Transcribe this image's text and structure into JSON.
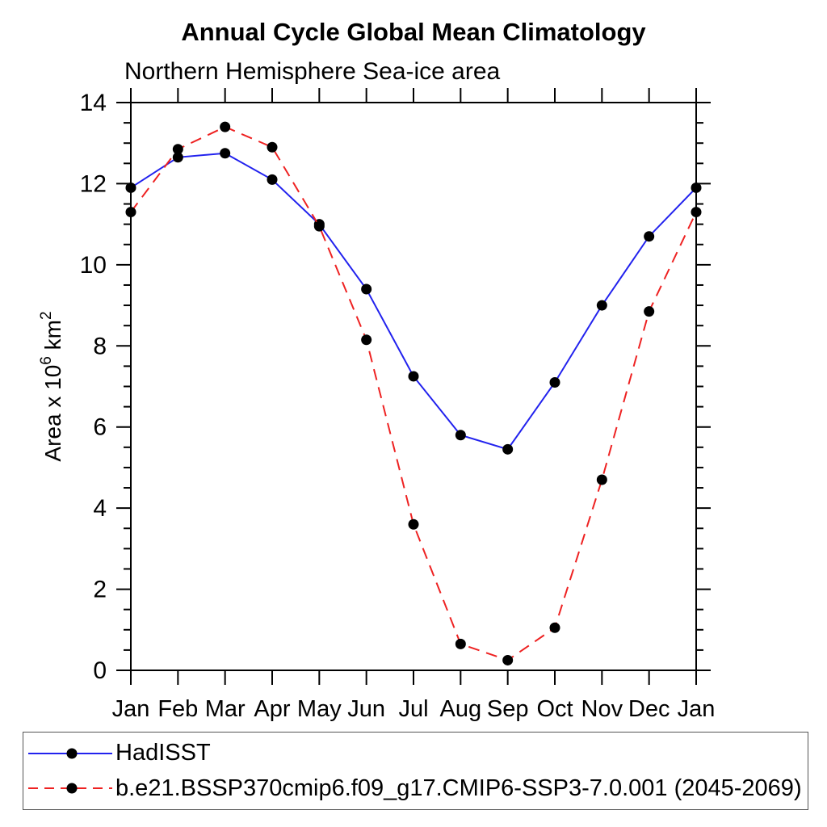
{
  "chart_data": {
    "type": "line",
    "title": "Annual Cycle Global Mean Climatology",
    "subtitle": "Northern Hemisphere Sea-ice area",
    "ylabel": "Area x 10^6 km^2",
    "xlabel": "",
    "x_categories": [
      "Jan",
      "Feb",
      "Mar",
      "Apr",
      "May",
      "Jun",
      "Jul",
      "Aug",
      "Sep",
      "Oct",
      "Nov",
      "Dec",
      "Jan"
    ],
    "ylim": [
      0,
      14
    ],
    "ytick_major_step": 2,
    "ytick_minor_step": 0.5,
    "grid": false,
    "legend_position": "bottom-left-box",
    "colors": {
      "axis": "#000000",
      "marker": "#000000",
      "background": "#ffffff",
      "legend_border": "#555555"
    },
    "series": [
      {
        "name": "HadISST",
        "color": "#2222ee",
        "line_style": "solid",
        "marker": "circle",
        "values": [
          11.9,
          12.65,
          12.75,
          12.1,
          11.0,
          9.4,
          7.25,
          5.8,
          5.45,
          7.1,
          9.0,
          10.7,
          11.9
        ]
      },
      {
        "name": "b.e21.BSSP370cmip6.f09_g17.CMIP6-SSP3-7.0.001 (2045-2069)",
        "color": "#ee2222",
        "line_style": "dashed",
        "marker": "circle",
        "values": [
          11.3,
          12.85,
          13.4,
          12.9,
          10.95,
          8.15,
          3.6,
          0.65,
          0.25,
          1.05,
          4.7,
          8.85,
          11.3
        ]
      }
    ]
  }
}
